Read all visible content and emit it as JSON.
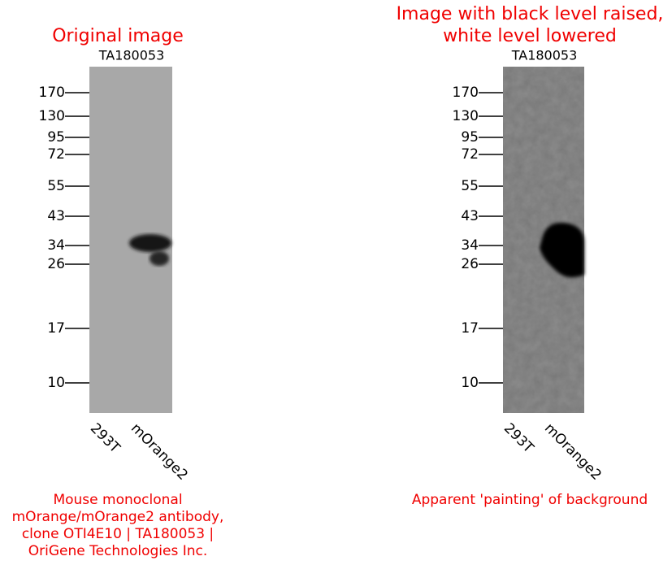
{
  "panels": [
    {
      "title": [
        "Original image"
      ],
      "blot_label": "TA180053",
      "markers": [
        "170",
        "130",
        "95",
        "72",
        "55",
        "43",
        "34",
        "26",
        "17",
        "10"
      ],
      "lanes": [
        "293T",
        "mOrange2"
      ],
      "caption": [
        "Mouse monoclonal",
        "mOrange/mOrange2 antibody,",
        "clone OTI4E10 | TA180053 |",
        "OriGene Technologies Inc."
      ]
    },
    {
      "title": [
        "Image with black level raised,",
        "white level lowered"
      ],
      "blot_label": "TA180053",
      "markers": [
        "170",
        "130",
        "95",
        "72",
        "55",
        "43",
        "34",
        "26",
        "17",
        "10"
      ],
      "lanes": [
        "293T",
        "mOrange2"
      ],
      "caption": [
        "Apparent 'painting' of background"
      ]
    }
  ]
}
